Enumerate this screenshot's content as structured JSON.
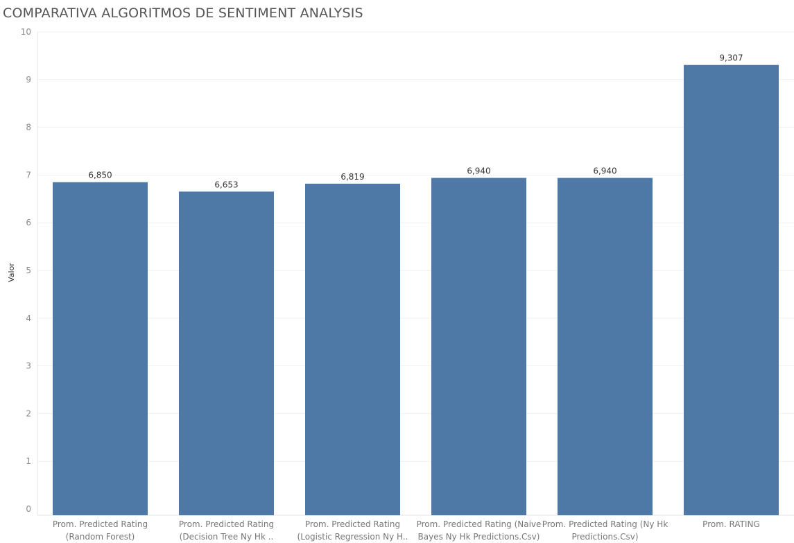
{
  "chart_data": {
    "type": "bar",
    "title": "COMPARATIVA ALGORITMOS DE SENTIMENT ANALYSIS",
    "xlabel": "",
    "ylabel": "Valor",
    "ylim": [
      0,
      10
    ],
    "yticks": [
      "0",
      "1",
      "2",
      "3",
      "4",
      "5",
      "6",
      "7",
      "8",
      "9",
      "10"
    ],
    "grid": true,
    "bar_color": "#4e79a7",
    "categories": [
      [
        "Prom. Predicted Rating",
        "(Random Forest)"
      ],
      [
        "Prom. Predicted Rating",
        "(Decision Tree Ny Hk .."
      ],
      [
        "Prom. Predicted Rating",
        "(Logistic Regression Ny H.."
      ],
      [
        "Prom. Predicted Rating (Naive",
        "Bayes Ny Hk Predictions.Csv)"
      ],
      [
        "Prom. Predicted Rating (Ny Hk",
        "Predictions.Csv)"
      ],
      [
        "Prom. RATING"
      ]
    ],
    "values": [
      6.85,
      6.653,
      6.819,
      6.94,
      6.94,
      9.307
    ],
    "data_labels": [
      "6,850",
      "6,653",
      "6,819",
      "6,940",
      "6,940",
      "9,307"
    ]
  }
}
